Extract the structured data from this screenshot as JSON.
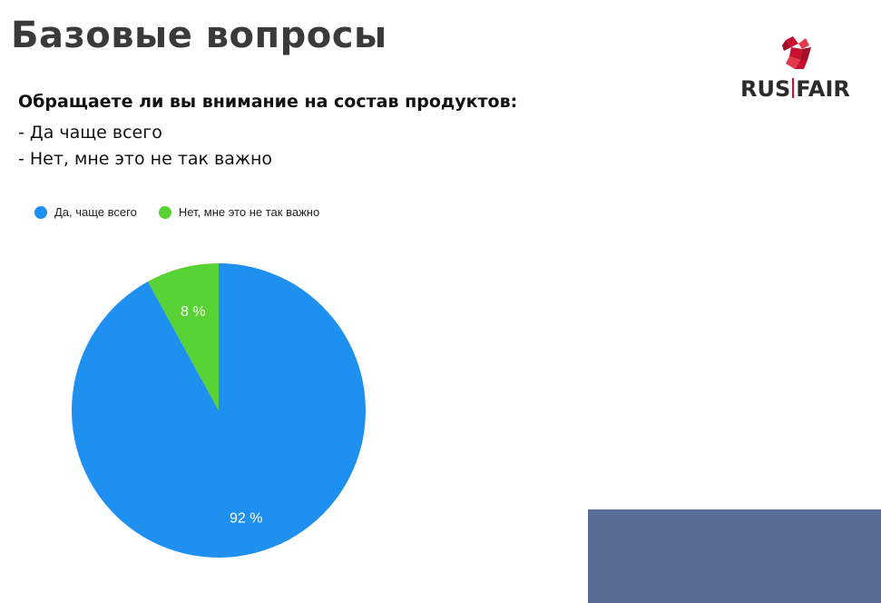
{
  "page": {
    "title": "Базовые вопросы",
    "question": "Обращаете ли вы внимание на состав продуктов:",
    "options": [
      "- Да чаще всего",
      "- Нет, мне это не так важно"
    ]
  },
  "logo": {
    "text_left": "RUS",
    "text_right": "FAIR",
    "icon": "rooster-icon",
    "color_icon": "#c8102e",
    "color_text": "#2b2b2b"
  },
  "decor": {
    "corner_block_color": "#5a6d97"
  },
  "chart_data": {
    "type": "pie",
    "title": "",
    "legend_position": "top-left",
    "series": [
      {
        "name": "Да, чаще всего",
        "value": 92,
        "label": "92 %",
        "color": "#1e90f0"
      },
      {
        "name": "Нет, мне это не так важно",
        "value": 8,
        "label": "8 %",
        "color": "#58d234"
      }
    ]
  }
}
